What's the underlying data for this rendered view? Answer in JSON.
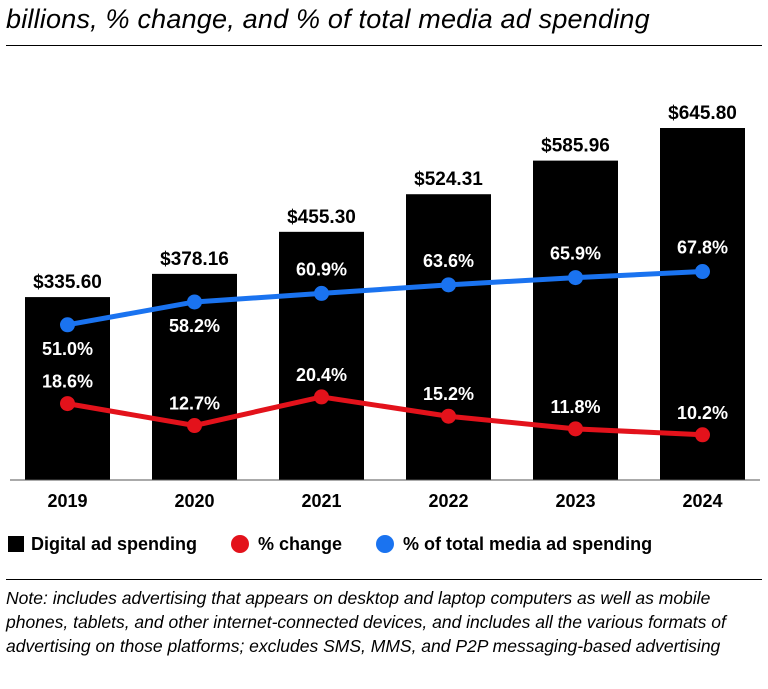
{
  "header": {
    "subtitle": "billions, % change, and % of total media ad spending"
  },
  "chart_data": {
    "type": "bar",
    "categories": [
      "2019",
      "2020",
      "2021",
      "2022",
      "2023",
      "2024"
    ],
    "series": [
      {
        "name": "Digital ad spending",
        "kind": "bar",
        "color": "#000000",
        "values": [
          335.6,
          378.16,
          455.3,
          524.31,
          585.96,
          645.8
        ],
        "labels": [
          "$335.60",
          "$378.16",
          "$455.30",
          "$524.31",
          "$585.96",
          "$645.80"
        ]
      },
      {
        "name": "% change",
        "kind": "line",
        "color": "#e3121b",
        "values": [
          18.6,
          12.7,
          20.4,
          15.2,
          11.8,
          10.2
        ],
        "labels": [
          "18.6%",
          "12.7%",
          "20.4%",
          "15.2%",
          "11.8%",
          "10.2%"
        ]
      },
      {
        "name": "% of total media ad spending",
        "kind": "line",
        "color": "#1a73f0",
        "values": [
          51.0,
          58.2,
          60.9,
          63.6,
          65.9,
          67.8
        ],
        "labels": [
          "51.0%",
          "58.2%",
          "60.9%",
          "63.6%",
          "65.9%",
          "67.8%"
        ]
      }
    ],
    "legend_position": "bottom",
    "grid": false
  },
  "legend": {
    "items": [
      {
        "label": "Digital ad spending",
        "shape": "square",
        "color": "#000000"
      },
      {
        "label": "% change",
        "shape": "circle",
        "color": "#e3121b"
      },
      {
        "label": "% of total media ad spending",
        "shape": "circle",
        "color": "#1a73f0"
      }
    ]
  },
  "footer": {
    "note": "Note: includes advertising that appears on desktop and laptop computers as well as mobile phones, tablets, and other internet-connected devices, and includes all the various formats of advertising on those platforms; excludes SMS, MMS, and P2P messaging-based advertising"
  }
}
